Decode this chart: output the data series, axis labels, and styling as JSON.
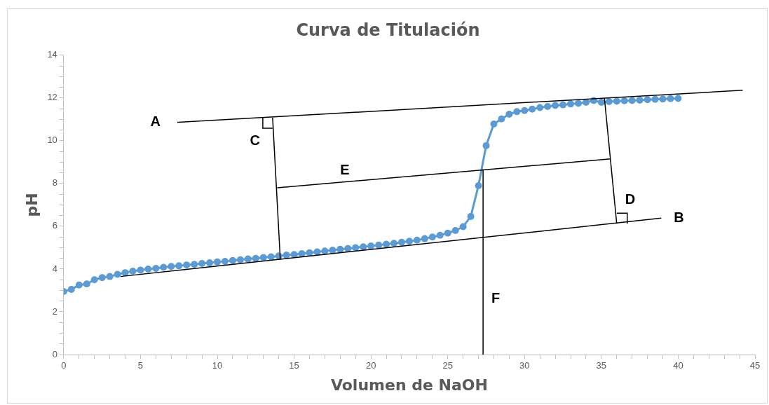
{
  "chart_data": {
    "type": "line",
    "title": "Curva de Titulación",
    "xlabel": "Volumen de NaOH",
    "ylabel": "pH",
    "xlim": [
      0,
      45
    ],
    "ylim": [
      0,
      14
    ],
    "xticks": [
      0,
      {
        "value": 1,
        "label": null
      },
      {
        "value": 2,
        "label": null
      },
      {
        "value": 3,
        "label": null
      },
      {
        "value": 4,
        "label": null
      },
      5,
      {
        "value": 6,
        "label": null
      },
      {
        "value": 7,
        "label": null
      },
      {
        "value": 8,
        "label": null
      },
      {
        "value": 9,
        "label": null
      },
      10,
      {
        "value": 11,
        "label": null
      },
      {
        "value": 12,
        "label": null
      },
      {
        "value": 13,
        "label": null
      },
      {
        "value": 14,
        "label": null
      },
      15,
      {
        "value": 16,
        "label": null
      },
      {
        "value": 17,
        "label": null
      },
      {
        "value": 18,
        "label": null
      },
      {
        "value": 19,
        "label": null
      },
      20,
      {
        "value": 21,
        "label": null
      },
      {
        "value": 22,
        "label": null
      },
      {
        "value": 23,
        "label": null
      },
      {
        "value": 24,
        "label": null
      },
      25,
      {
        "value": 26,
        "label": null
      },
      {
        "value": 27,
        "label": null
      },
      {
        "value": 28,
        "label": null
      },
      {
        "value": 29,
        "label": null
      },
      30,
      {
        "value": 31,
        "label": null
      },
      {
        "value": 32,
        "label": null
      },
      {
        "value": 33,
        "label": null
      },
      {
        "value": 34,
        "label": null
      },
      35,
      {
        "value": 36,
        "label": null
      },
      {
        "value": 37,
        "label": null
      },
      {
        "value": 38,
        "label": null
      },
      {
        "value": 39,
        "label": null
      },
      40,
      {
        "value": 41,
        "label": null
      },
      {
        "value": 42,
        "label": null
      },
      {
        "value": 43,
        "label": null
      },
      {
        "value": 44,
        "label": null
      },
      45
    ],
    "yticks": [
      0,
      {
        "value": 0.5,
        "label": null
      },
      {
        "value": 1,
        "label": null
      },
      {
        "value": 1.5,
        "label": null
      },
      2,
      {
        "value": 2.5,
        "label": null
      },
      {
        "value": 3,
        "label": null
      },
      {
        "value": 3.5,
        "label": null
      },
      4,
      {
        "value": 4.5,
        "label": null
      },
      {
        "value": 5,
        "label": null
      },
      {
        "value": 5.5,
        "label": null
      },
      6,
      {
        "value": 6.5,
        "label": null
      },
      {
        "value": 7,
        "label": null
      },
      {
        "value": 7.5,
        "label": null
      },
      8,
      {
        "value": 8.5,
        "label": null
      },
      {
        "value": 9,
        "label": null
      },
      {
        "value": 9.5,
        "label": null
      },
      10,
      {
        "value": 10.5,
        "label": null
      },
      {
        "value": 11,
        "label": null
      },
      {
        "value": 11.5,
        "label": null
      },
      12,
      {
        "value": 12.5,
        "label": null
      },
      {
        "value": 13,
        "label": null
      },
      {
        "value": 13.5,
        "label": null
      },
      14
    ],
    "grid": false,
    "legend": false,
    "series": [
      {
        "color": "#5b9bd5",
        "marker": "circle",
        "line_style": "solid",
        "x": [
          0,
          0.5,
          1,
          1.5,
          2,
          2.5,
          3,
          3.5,
          4,
          4.5,
          5,
          5.5,
          6,
          6.5,
          7,
          7.5,
          8,
          8.5,
          9,
          9.5,
          10,
          10.5,
          11,
          11.5,
          12,
          12.5,
          13,
          13.5,
          14,
          14.5,
          15,
          15.5,
          16,
          16.5,
          17,
          17.5,
          18,
          18.5,
          19,
          19.5,
          20,
          20.5,
          21,
          21.5,
          22,
          22.5,
          23,
          23.5,
          24,
          24.5,
          25,
          25.5,
          26,
          26.5,
          27,
          27.5,
          28,
          28.5,
          29,
          29.5,
          30,
          30.5,
          31,
          31.5,
          32,
          32.5,
          33,
          33.5,
          34,
          34.5,
          35,
          35.5,
          36,
          36.5,
          37,
          37.5,
          38,
          38.5,
          39,
          39.5,
          40
        ],
        "values": [
          2.95,
          3.05,
          3.25,
          3.3,
          3.5,
          3.6,
          3.65,
          3.75,
          3.83,
          3.9,
          3.95,
          4.0,
          4.03,
          4.08,
          4.12,
          4.15,
          4.19,
          4.22,
          4.26,
          4.29,
          4.33,
          4.36,
          4.4,
          4.43,
          4.47,
          4.5,
          4.54,
          4.57,
          4.61,
          4.65,
          4.68,
          4.72,
          4.76,
          4.8,
          4.84,
          4.88,
          4.92,
          4.96,
          5.0,
          5.04,
          5.08,
          5.12,
          5.16,
          5.2,
          5.25,
          5.3,
          5.35,
          5.42,
          5.5,
          5.58,
          5.68,
          5.8,
          5.98,
          6.46,
          7.9,
          9.77,
          10.78,
          11.02,
          11.24,
          11.36,
          11.41,
          11.48,
          11.55,
          11.6,
          11.65,
          11.68,
          11.72,
          11.75,
          11.8,
          11.88,
          11.8,
          11.83,
          11.85,
          11.87,
          11.88,
          11.9,
          11.92,
          11.94,
          11.95,
          11.97,
          11.98
        ]
      },
      {
        "type": "line",
        "color": "#000000",
        "marker": "none",
        "line_style": "solid",
        "x": [
          7.4,
          44.2
        ],
        "values": [
          10.86,
          12.36
        ]
      },
      {
        "type": "line",
        "color": "#000000",
        "marker": "none",
        "line_style": "solid",
        "x": [
          3.7,
          38.9
        ],
        "values": [
          3.65,
          6.38
        ]
      },
      {
        "type": "line",
        "color": "#000000",
        "marker": "none",
        "line_style": "solid",
        "x": [
          13.6,
          14.1
        ],
        "values": [
          11.08,
          4.45
        ]
      },
      {
        "type": "line",
        "color": "#000000",
        "marker": "none",
        "line_style": "solid",
        "x": [
          35.2,
          36.0
        ],
        "values": [
          11.99,
          6.12
        ]
      },
      {
        "type": "line",
        "color": "#000000",
        "marker": "none",
        "line_style": "solid",
        "x": [
          13.9,
          35.6
        ],
        "values": [
          7.8,
          9.15
        ]
      },
      {
        "type": "line",
        "color": "#000000",
        "marker": "none",
        "line_style": "solid",
        "x": [
          27.3,
          27.3
        ],
        "values": [
          8.64,
          0
        ]
      }
    ],
    "annotations": [
      {
        "text": "A",
        "x": 7.4,
        "y": 10.86
      },
      {
        "text": "B",
        "x": 38.9,
        "y": 6.38
      },
      {
        "text": "C",
        "x": 13.6,
        "y": 11.08
      },
      {
        "text": "D",
        "x": 36.0,
        "y": 6.12
      },
      {
        "text": "E",
        "x": 18.3,
        "y": 8.07
      },
      {
        "text": "F",
        "x": 27.3,
        "y": 2.6
      }
    ]
  }
}
